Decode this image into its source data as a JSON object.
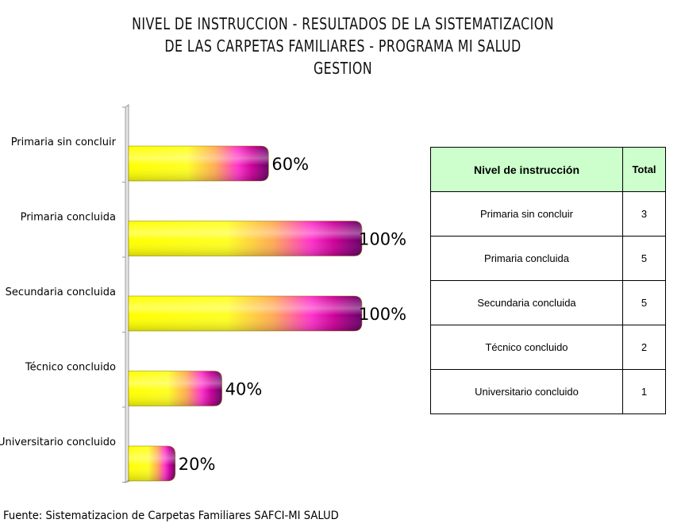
{
  "title_lines": [
    "NIVEL DE INSTRUCCION - RESULTADOS DE LA SISTEMATIZACION",
    "DE LAS CARPETAS FAMILIARES - PROGRAMA MI SALUD",
    "GESTION"
  ],
  "chart_data": {
    "type": "bar",
    "orientation": "horizontal",
    "categories": [
      "Primaria sin concluir",
      "Primaria concluida",
      "Secundaria concluida",
      "Técnico concluido",
      "Universitario concluido"
    ],
    "values": [
      60,
      100,
      100,
      40,
      20
    ],
    "value_labels": [
      "60%",
      "100%",
      "100%",
      "40%",
      "20%"
    ],
    "xlim": [
      0,
      100
    ],
    "grid": false,
    "gradient_colors": [
      "#ffff00",
      "#ffff33",
      "#ff33cc",
      "#660066"
    ]
  },
  "table": {
    "headers": [
      "Nivel de instrucción",
      "Total"
    ],
    "rows": [
      [
        "Primaria sin concluir",
        "3"
      ],
      [
        "Primaria concluida",
        "5"
      ],
      [
        "Secundaria concluida",
        "5"
      ],
      [
        "Técnico concluido",
        "2"
      ],
      [
        "Universitario concluido",
        "1"
      ]
    ]
  },
  "source": "Fuente: Sistematizacion de Carpetas Familiares SAFCI-MI SALUD"
}
